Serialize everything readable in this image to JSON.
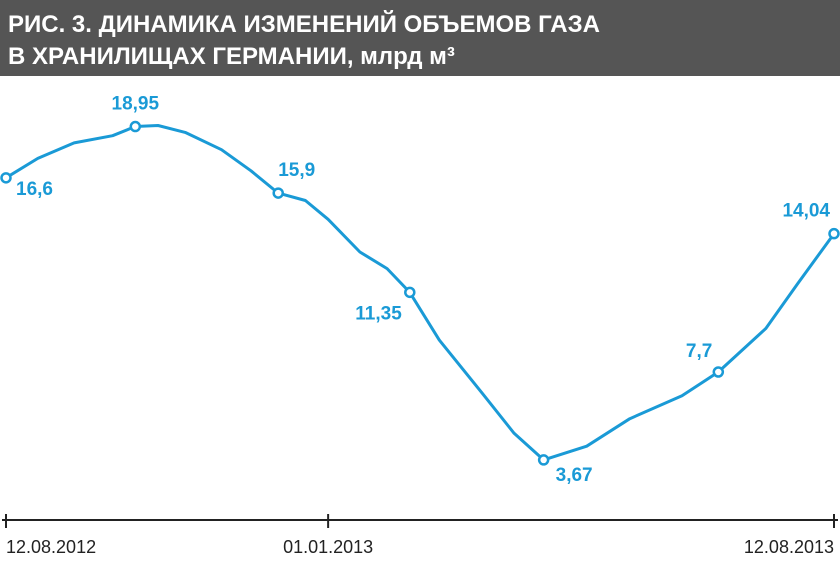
{
  "chart_data": {
    "type": "line",
    "title_lines": [
      "РИС. 3. ДИНАМИКА ИЗМЕНЕНИЙ ОБЪЕМОВ ГАЗА",
      "В ХРАНИЛИЩАХ ГЕРМАНИИ, млрд м³"
    ],
    "x": [
      "12.08.2012",
      "26.08.2012",
      "11.09.2012",
      "28.09.2012",
      "08.10.2012",
      "18.10.2012",
      "30.10.2012",
      "15.11.2012",
      "28.11.2012",
      "10.12.2012",
      "22.12.2012",
      "01.01.2013",
      "15.01.2013",
      "27.01.2013",
      "06.02.2013",
      "19.02.2013",
      "10.03.2013",
      "24.03.2013",
      "06.04.2013",
      "25.04.2013",
      "14.05.2013",
      "06.06.2013",
      "22.06.2013",
      "13.07.2013",
      "27.07.2013",
      "12.08.2013"
    ],
    "series": [
      {
        "color": "#1a9ad6",
        "values": [
          16.6,
          17.49,
          18.2,
          18.53,
          18.95,
          19.0,
          18.68,
          17.89,
          16.92,
          15.9,
          15.56,
          14.7,
          13.2,
          12.44,
          11.35,
          9.16,
          6.72,
          4.89,
          3.67,
          4.3,
          5.56,
          6.61,
          7.7,
          9.7,
          11.75,
          14.04
        ],
        "value_labels": [
          "16,6",
          null,
          null,
          null,
          "18,95",
          null,
          null,
          null,
          null,
          "15,9",
          null,
          null,
          null,
          null,
          "11,35",
          null,
          null,
          null,
          "3,67",
          null,
          null,
          null,
          "7,7",
          null,
          null,
          "14,04"
        ]
      }
    ],
    "xlim": [
      "12.08.2012",
      "12.08.2013"
    ],
    "xticks": [
      "12.08.2012",
      "01.01.2013",
      "12.08.2013"
    ],
    "ylim": [
      0,
      22
    ]
  }
}
